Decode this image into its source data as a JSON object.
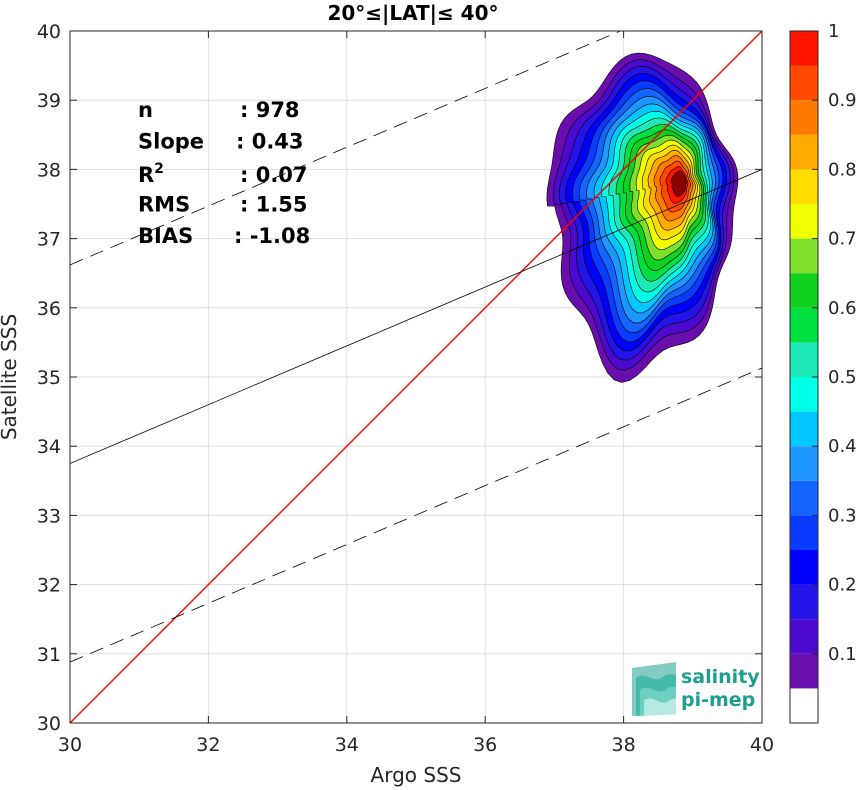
{
  "chart_data": {
    "type": "heatmap",
    "title": "20°≤|LAT|≤ 40°",
    "xlabel": "Argo SSS",
    "ylabel": "Satellite SSS",
    "xlim": [
      30,
      40
    ],
    "ylim": [
      30,
      40
    ],
    "xticks": [
      "30",
      "32",
      "34",
      "36",
      "38",
      "40"
    ],
    "yticks": [
      "30",
      "31",
      "32",
      "33",
      "34",
      "35",
      "36",
      "37",
      "38",
      "39",
      "40"
    ],
    "grid": true,
    "stats": [
      {
        "label": "n",
        "value": ": 978"
      },
      {
        "label": "Slope",
        "value": ": 0.43"
      },
      {
        "label": "R",
        "sup": "2",
        "value": ": 0.07"
      },
      {
        "label": "RMS",
        "value": ": 1.55"
      },
      {
        "label": "BIAS",
        "value": ": -1.08"
      }
    ],
    "one_to_one_line": {
      "color": "#ff0000",
      "from": [
        30,
        30
      ],
      "to": [
        40,
        40
      ]
    },
    "fit_line": {
      "color": "#000000",
      "slope": 0.43,
      "intercept_at_30": 33.75,
      "value_at_40": 38.0
    },
    "fit_bounds_dashed": {
      "offset": 2.87
    },
    "colorbar": {
      "ticks": [
        "0.1",
        "0.2",
        "0.3",
        "0.4",
        "0.5",
        "0.6",
        "0.7",
        "0.8",
        "0.9",
        "1"
      ],
      "levels": [
        0,
        0.05,
        0.1,
        0.15,
        0.2,
        0.25,
        0.3,
        0.35,
        0.4,
        0.45,
        0.5,
        0.55,
        0.6,
        0.65,
        0.7,
        0.75,
        0.8,
        0.85,
        0.9,
        0.95,
        1
      ],
      "colors": [
        "#ffffff",
        "#6a0dad",
        "#4b0acd",
        "#2514e8",
        "#0000ff",
        "#0a3cff",
        "#1464ff",
        "#1e96ff",
        "#00c8ff",
        "#00ffe6",
        "#1de9b6",
        "#00e040",
        "#10d020",
        "#7ee02b",
        "#f0ff00",
        "#ffdd00",
        "#ffaa00",
        "#ff7a00",
        "#ff4a00",
        "#ff1400",
        "#8b0000"
      ]
    },
    "density_core": {
      "x": 38.8,
      "y": 37.8,
      "max": 1
    }
  },
  "logo": {
    "line1": "salinity",
    "line2": "pi-mep"
  }
}
